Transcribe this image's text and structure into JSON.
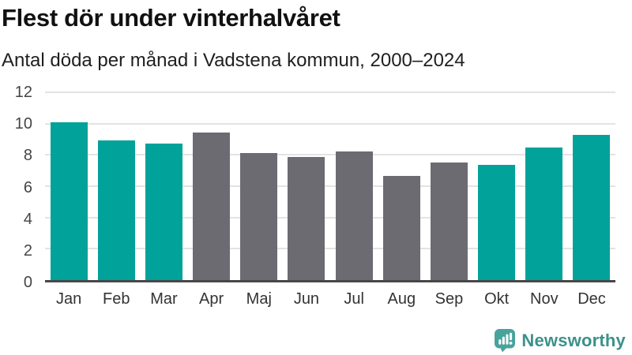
{
  "header": {
    "title": "Flest dör under vinterhalvåret",
    "subtitle": "Antal döda per månad i Vadstena kommun, 2000–2024"
  },
  "chart_data": {
    "type": "bar",
    "title": "Flest dör under vinterhalvåret",
    "subtitle": "Antal döda per månad i Vadstena kommun, 2000–2024",
    "categories": [
      "Jan",
      "Feb",
      "Mar",
      "Apr",
      "Maj",
      "Jun",
      "Jul",
      "Aug",
      "Sep",
      "Okt",
      "Nov",
      "Dec"
    ],
    "values": [
      10.1,
      8.9,
      8.7,
      9.45,
      8.1,
      7.85,
      8.2,
      6.65,
      7.5,
      7.35,
      8.45,
      9.3
    ],
    "bar_color_keys": [
      "highlight",
      "highlight",
      "highlight",
      "default",
      "default",
      "default",
      "default",
      "default",
      "default",
      "highlight",
      "highlight",
      "highlight"
    ],
    "colors": {
      "highlight": "#00A29A",
      "default": "#6C6B72"
    },
    "xlabel": "",
    "ylabel": "",
    "ylim": [
      0,
      12
    ],
    "yticks": [
      0,
      2,
      4,
      6,
      8,
      10,
      12
    ],
    "grid": true,
    "legend": "none",
    "highlight_meaning": "winter-half-year months (Okt–Mar) in teal, summer-half-year (Apr–Sep) in gray"
  },
  "footer": {
    "brand": "Newsworthy",
    "logo_icon": "bar-chart-speech-bubble-icon",
    "brand_text_color": "#3C918B",
    "logo_color": "#48A39C"
  }
}
